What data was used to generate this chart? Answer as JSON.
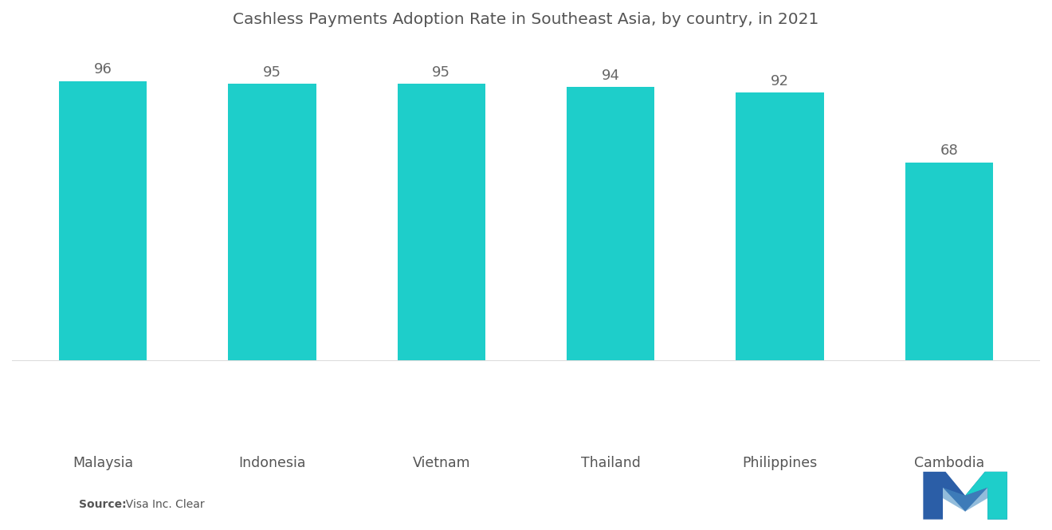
{
  "title": "Cashless Payments Adoption Rate in Southeast Asia, by country, in 2021",
  "categories": [
    "Malaysia",
    "Indonesia",
    "Vietnam",
    "Thailand",
    "Philippines",
    "Cambodia"
  ],
  "values": [
    96,
    95,
    95,
    94,
    92,
    68
  ],
  "bar_color": "#1ECECA",
  "background_color": "#FFFFFF",
  "title_fontsize": 14.5,
  "label_fontsize": 12.5,
  "value_fontsize": 13,
  "source_text_bold": "Source:",
  "source_text_normal": "  Visa Inc. Clear",
  "ylim": [
    -30,
    105
  ],
  "bar_width": 0.52,
  "logo_colors": {
    "dark_blue": "#2B5EA7",
    "teal": "#1ECECA"
  }
}
